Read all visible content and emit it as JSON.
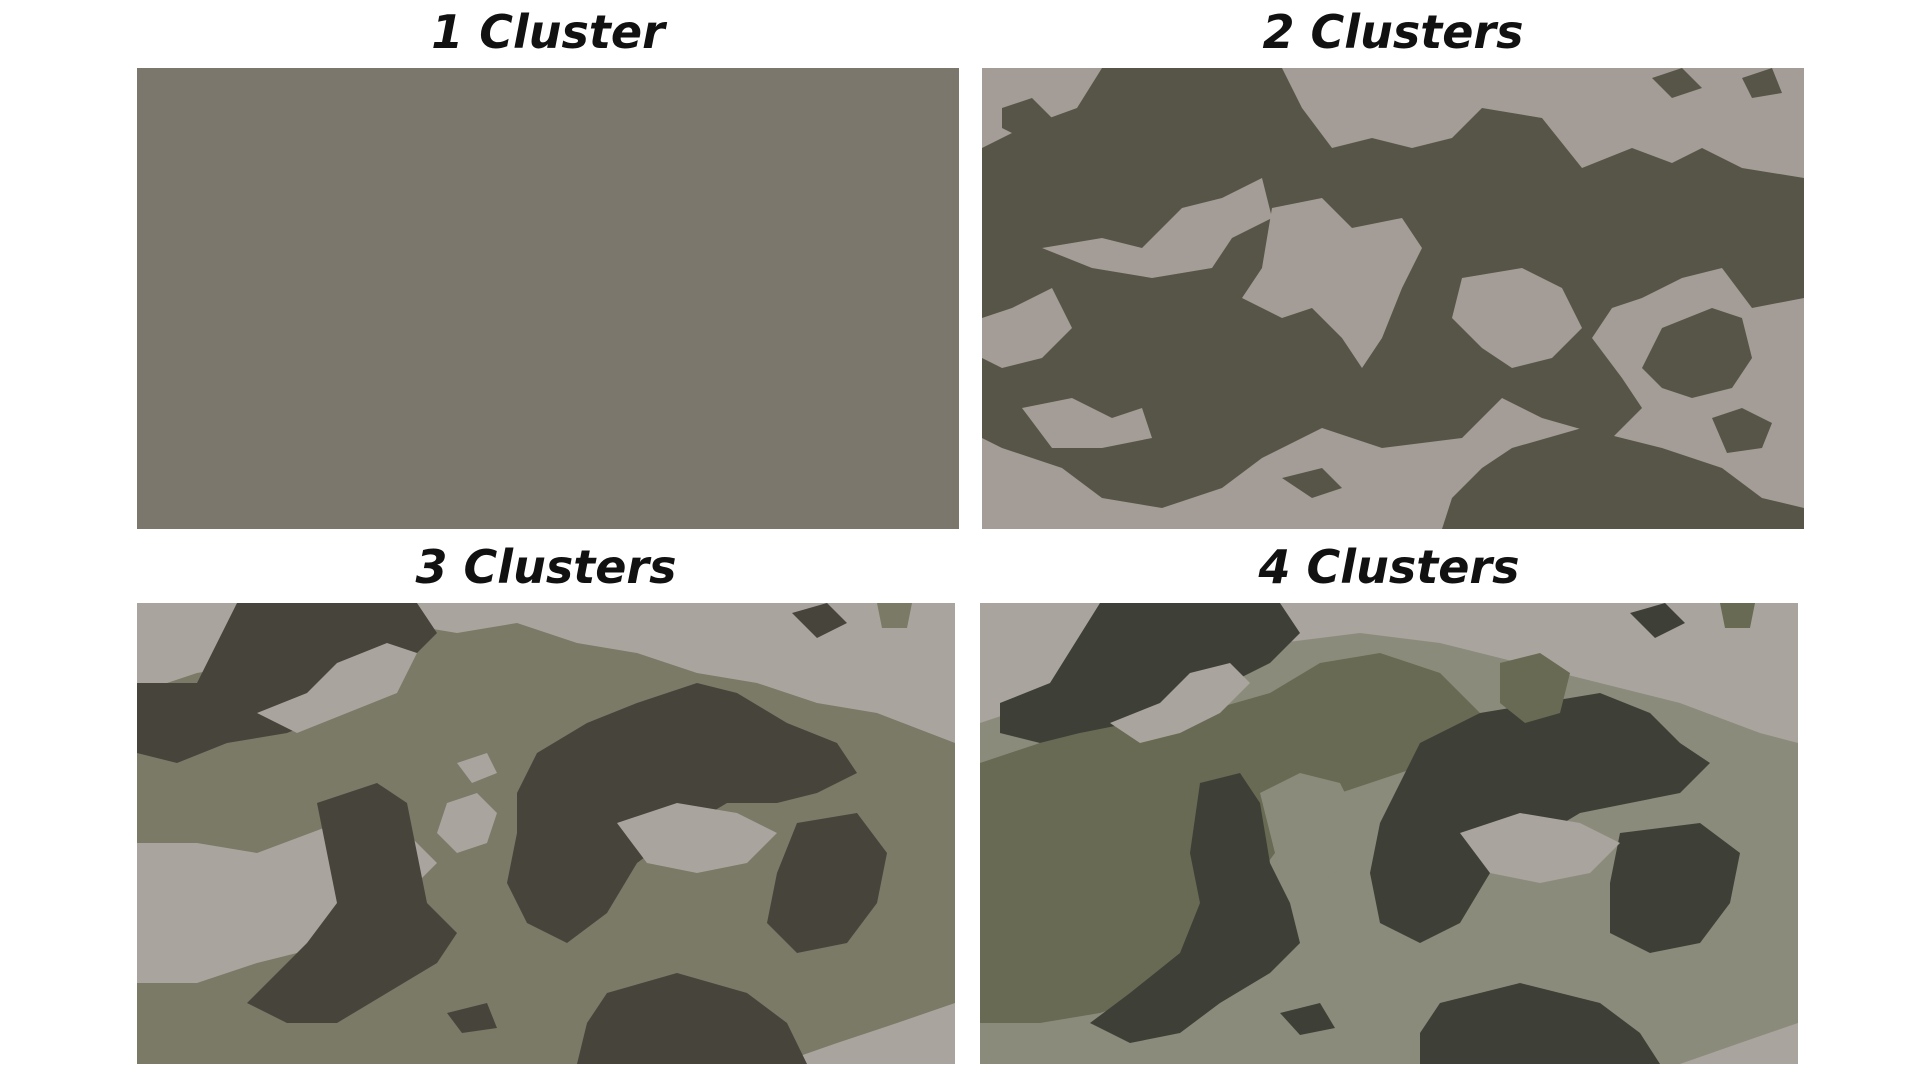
{
  "panels": [
    {
      "title": "1 Cluster",
      "clusters": 1,
      "colors": [
        "#7b776d"
      ]
    },
    {
      "title": "2 Clusters",
      "clusters": 2,
      "colors": [
        "#a49d97",
        "#575548"
      ]
    },
    {
      "title": "3 Clusters",
      "clusters": 3,
      "colors": [
        "#aaa49e",
        "#7a7a66",
        "#47443c"
      ]
    },
    {
      "title": "4 Clusters",
      "clusters": 4,
      "colors": [
        "#aaa49e",
        "#8b8b7c",
        "#686a54",
        "#3e4037"
      ]
    }
  ]
}
